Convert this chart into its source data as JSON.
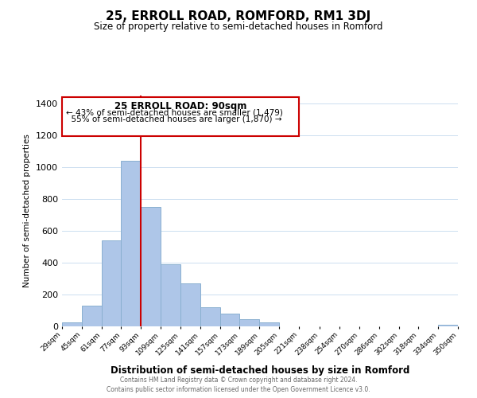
{
  "title": "25, ERROLL ROAD, ROMFORD, RM1 3DJ",
  "subtitle": "Size of property relative to semi-detached houses in Romford",
  "xlabel": "Distribution of semi-detached houses by size in Romford",
  "ylabel": "Number of semi-detached properties",
  "bar_edges": [
    29,
    45,
    61,
    77,
    93,
    109,
    125,
    141,
    157,
    173,
    189,
    205,
    221,
    238,
    254,
    270,
    286,
    302,
    318,
    334,
    350
  ],
  "bar_heights": [
    25,
    130,
    540,
    1040,
    750,
    390,
    270,
    120,
    80,
    45,
    25,
    0,
    0,
    0,
    0,
    0,
    0,
    0,
    0,
    10
  ],
  "bar_color": "#aec6e8",
  "bar_edge_color": "#8ab0d0",
  "property_label": "25 ERROLL ROAD: 90sqm",
  "smaller_pct": 43,
  "smaller_count": 1479,
  "larger_pct": 55,
  "larger_count": 1870,
  "vline_x": 93,
  "vline_color": "#cc0000",
  "annotation_box_facecolor": "#ffffff",
  "annotation_box_edgecolor": "#cc0000",
  "ylim": [
    0,
    1450
  ],
  "yticks": [
    0,
    200,
    400,
    600,
    800,
    1000,
    1200,
    1400
  ],
  "tick_labels": [
    "29sqm",
    "45sqm",
    "61sqm",
    "77sqm",
    "93sqm",
    "109sqm",
    "125sqm",
    "141sqm",
    "157sqm",
    "173sqm",
    "189sqm",
    "205sqm",
    "221sqm",
    "238sqm",
    "254sqm",
    "270sqm",
    "286sqm",
    "302sqm",
    "318sqm",
    "334sqm",
    "350sqm"
  ],
  "footer_line1": "Contains HM Land Registry data © Crown copyright and database right 2024.",
  "footer_line2": "Contains public sector information licensed under the Open Government Licence v3.0.",
  "background_color": "#ffffff",
  "grid_color": "#ccdff0"
}
